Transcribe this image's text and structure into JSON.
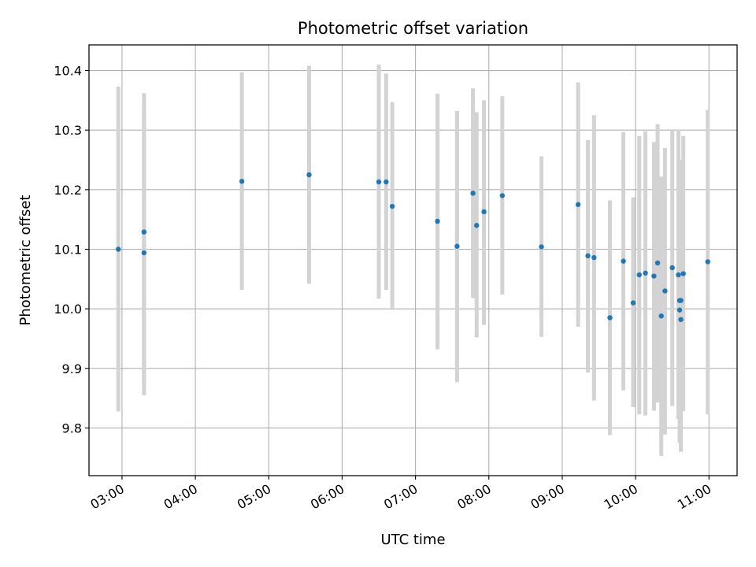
{
  "chart_data": {
    "type": "scatter",
    "title": "Photometric offset variation",
    "xlabel": "UTC time",
    "ylabel": "Photometric offset",
    "x_is_time": true,
    "xlim": [
      "02:33",
      "11:23"
    ],
    "ylim": [
      9.72,
      10.443
    ],
    "xticks": [
      {
        "t": "03:00",
        "label": "03:00"
      },
      {
        "t": "04:00",
        "label": "04:00"
      },
      {
        "t": "05:00",
        "label": "05:00"
      },
      {
        "t": "06:00",
        "label": "06:00"
      },
      {
        "t": "07:00",
        "label": "07:00"
      },
      {
        "t": "08:00",
        "label": "08:00"
      },
      {
        "t": "09:00",
        "label": "09:00"
      },
      {
        "t": "10:00",
        "label": "10:00"
      },
      {
        "t": "11:00",
        "label": "11:00"
      }
    ],
    "yticks": [
      {
        "v": 9.8,
        "label": "9.8"
      },
      {
        "v": 9.9,
        "label": "9.9"
      },
      {
        "v": 10.0,
        "label": "10.0"
      },
      {
        "v": 10.1,
        "label": "10.1"
      },
      {
        "v": 10.2,
        "label": "10.2"
      },
      {
        "v": 10.3,
        "label": "10.3"
      },
      {
        "v": 10.4,
        "label": "10.4"
      }
    ],
    "grid": true,
    "marker_color": "#1f77b4",
    "errorbar_color": "#d3d3d3",
    "grid_color": "#b0b0b0",
    "points": [
      {
        "t": "02:57",
        "y": 10.1,
        "lo": 9.828,
        "hi": 10.373
      },
      {
        "t": "03:18",
        "y": 10.129,
        "lo": 9.855,
        "hi": 10.362
      },
      {
        "t": "03:18",
        "y": 10.094,
        "lo": 9.876,
        "hi": 10.334
      },
      {
        "t": "04:38",
        "y": 10.214,
        "lo": 10.032,
        "hi": 10.397
      },
      {
        "t": "05:33",
        "y": 10.225,
        "lo": 10.042,
        "hi": 10.408
      },
      {
        "t": "06:30",
        "y": 10.213,
        "lo": 10.017,
        "hi": 10.41
      },
      {
        "t": "06:36",
        "y": 10.213,
        "lo": 10.032,
        "hi": 10.395
      },
      {
        "t": "06:41",
        "y": 10.172,
        "lo": 9.998,
        "hi": 10.347
      },
      {
        "t": "07:18",
        "y": 10.147,
        "lo": 9.932,
        "hi": 10.361
      },
      {
        "t": "07:34",
        "y": 10.105,
        "lo": 9.877,
        "hi": 10.332
      },
      {
        "t": "07:47",
        "y": 10.194,
        "lo": 10.018,
        "hi": 10.37
      },
      {
        "t": "07:50",
        "y": 10.14,
        "lo": 9.952,
        "hi": 10.33
      },
      {
        "t": "07:56",
        "y": 10.163,
        "lo": 9.973,
        "hi": 10.35
      },
      {
        "t": "08:11",
        "y": 10.19,
        "lo": 10.024,
        "hi": 10.357
      },
      {
        "t": "08:43",
        "y": 10.104,
        "lo": 9.953,
        "hi": 10.256
      },
      {
        "t": "09:13",
        "y": 10.175,
        "lo": 9.97,
        "hi": 10.38
      },
      {
        "t": "09:21",
        "y": 10.089,
        "lo": 9.893,
        "hi": 10.283
      },
      {
        "t": "09:26",
        "y": 10.086,
        "lo": 9.846,
        "hi": 10.325
      },
      {
        "t": "09:39",
        "y": 9.985,
        "lo": 9.788,
        "hi": 10.182
      },
      {
        "t": "09:50",
        "y": 10.08,
        "lo": 9.863,
        "hi": 10.297
      },
      {
        "t": "09:58",
        "y": 10.01,
        "lo": 9.835,
        "hi": 10.187
      },
      {
        "t": "10:03",
        "y": 10.057,
        "lo": 9.823,
        "hi": 10.29
      },
      {
        "t": "10:08",
        "y": 10.06,
        "lo": 9.821,
        "hi": 10.298
      },
      {
        "t": "10:15",
        "y": 10.055,
        "lo": 9.829,
        "hi": 10.28
      },
      {
        "t": "10:18",
        "y": 10.077,
        "lo": 9.843,
        "hi": 10.31
      },
      {
        "t": "10:21",
        "y": 9.988,
        "lo": 9.753,
        "hi": 10.222
      },
      {
        "t": "10:24",
        "y": 10.03,
        "lo": 9.789,
        "hi": 10.27
      },
      {
        "t": "10:30",
        "y": 10.069,
        "lo": 9.837,
        "hi": 10.3
      },
      {
        "t": "10:35",
        "y": 10.057,
        "lo": 9.815,
        "hi": 10.301
      },
      {
        "t": "10:36",
        "y": 10.014,
        "lo": 9.808,
        "hi": 10.25
      },
      {
        "t": "10:36",
        "y": 9.998,
        "lo": 9.775,
        "hi": 10.24
      },
      {
        "t": "10:37",
        "y": 9.982,
        "lo": 9.76,
        "hi": 10.205
      },
      {
        "t": "10:37",
        "y": 10.014,
        "lo": 9.795,
        "hi": 10.237
      },
      {
        "t": "10:39",
        "y": 10.059,
        "lo": 9.828,
        "hi": 10.29
      },
      {
        "t": "10:59",
        "y": 10.079,
        "lo": 9.823,
        "hi": 10.334
      }
    ]
  }
}
